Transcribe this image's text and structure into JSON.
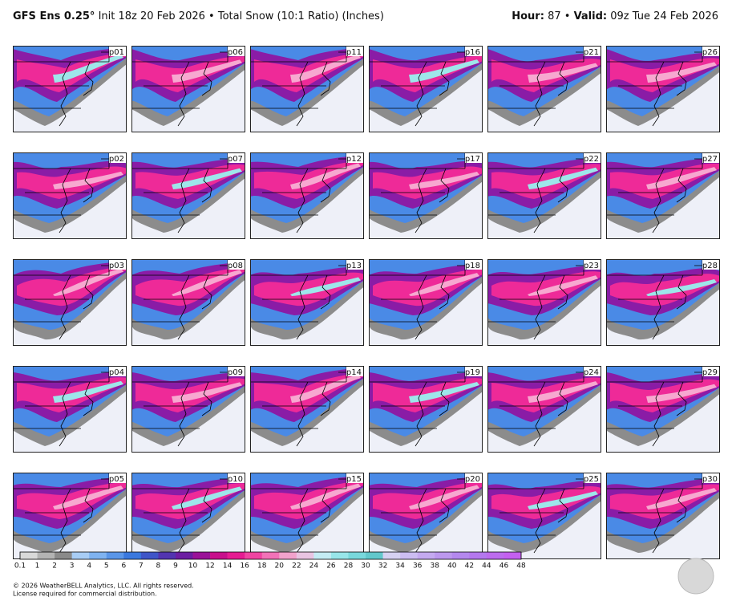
{
  "header": {
    "model": "GFS Ens 0.25°",
    "init": "Init 18z 20 Feb 2026",
    "separator": "•",
    "product": "Total Snow (10:1 Ratio) (Inches)",
    "hour_label": "Hour:",
    "hour": "87",
    "valid_label": "Valid:",
    "valid": "09z Tue 24 Feb 2026"
  },
  "panels": [
    "p01",
    "p02",
    "p03",
    "p04",
    "p05",
    "p06",
    "p07",
    "p08",
    "p09",
    "p10",
    "p11",
    "p12",
    "p13",
    "p14",
    "p15",
    "p16",
    "p17",
    "p18",
    "p19",
    "p20",
    "p21",
    "p22",
    "p23",
    "p24",
    "p25",
    "p26",
    "p27",
    "p28",
    "p29",
    "p30"
  ],
  "colorbar": {
    "labels": [
      0.1,
      1,
      2,
      3,
      4,
      5,
      6,
      7,
      8,
      9,
      10,
      12,
      14,
      16,
      18,
      20,
      22,
      24,
      26,
      28,
      30,
      32,
      34,
      36,
      38,
      40,
      42,
      44,
      46,
      48
    ],
    "colors": [
      "#d9d9d9",
      "#b3b3b3",
      "#8a8a8a",
      "#a8cdf5",
      "#7fb3f0",
      "#5a96e8",
      "#3a78de",
      "#3f55c8",
      "#5234b0",
      "#6c1ea2",
      "#9a1298",
      "#c8108c",
      "#e61c92",
      "#f044a2",
      "#f272b8",
      "#f2a2cc",
      "#e8c4e2",
      "#c4ecf4",
      "#98e6ea",
      "#78d8dc",
      "#62c8cc",
      "#d6d2f2",
      "#ccbdf2",
      "#c4aaf0",
      "#bc98ee",
      "#b488ee",
      "#b478ee",
      "#bc6cee",
      "#c460f0"
    ]
  },
  "footer": {
    "copyright": "© 2026 WeatherBELL Analytics, LLC. All rights reserved.",
    "license": "License required for commercial distribution."
  }
}
